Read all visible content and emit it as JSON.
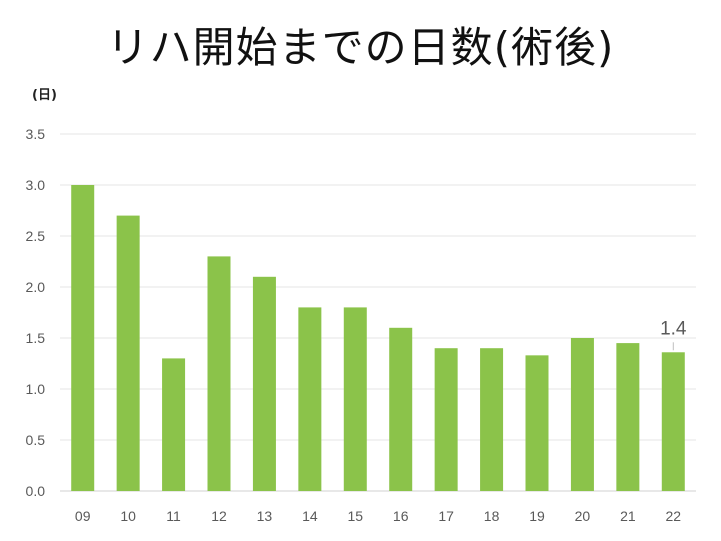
{
  "title": "リハ開始までの日数(術後)",
  "unit_label": "(日)",
  "colors": {
    "bar": "#8BC34A",
    "grid": "#e6e6e6",
    "axis": "#d0d0d0",
    "text": "#595959"
  },
  "chart_data": {
    "type": "bar",
    "title": "リハ開始までの日数(術後)",
    "ylabel": "(日)",
    "xlabel": "",
    "categories": [
      "09",
      "10",
      "11",
      "12",
      "13",
      "14",
      "15",
      "16",
      "17",
      "18",
      "19",
      "20",
      "21",
      "22"
    ],
    "values": [
      3.0,
      2.7,
      1.3,
      2.3,
      2.1,
      1.8,
      1.8,
      1.6,
      1.4,
      1.4,
      1.33,
      1.5,
      1.45,
      1.36
    ],
    "ylim": [
      0,
      3.5
    ],
    "yticks": [
      "0.0",
      "0.5",
      "1.0",
      "1.5",
      "2.0",
      "2.5",
      "3.0",
      "3.5"
    ],
    "grid": true,
    "annotations": [
      {
        "category": "22",
        "text": "1.4"
      }
    ]
  }
}
